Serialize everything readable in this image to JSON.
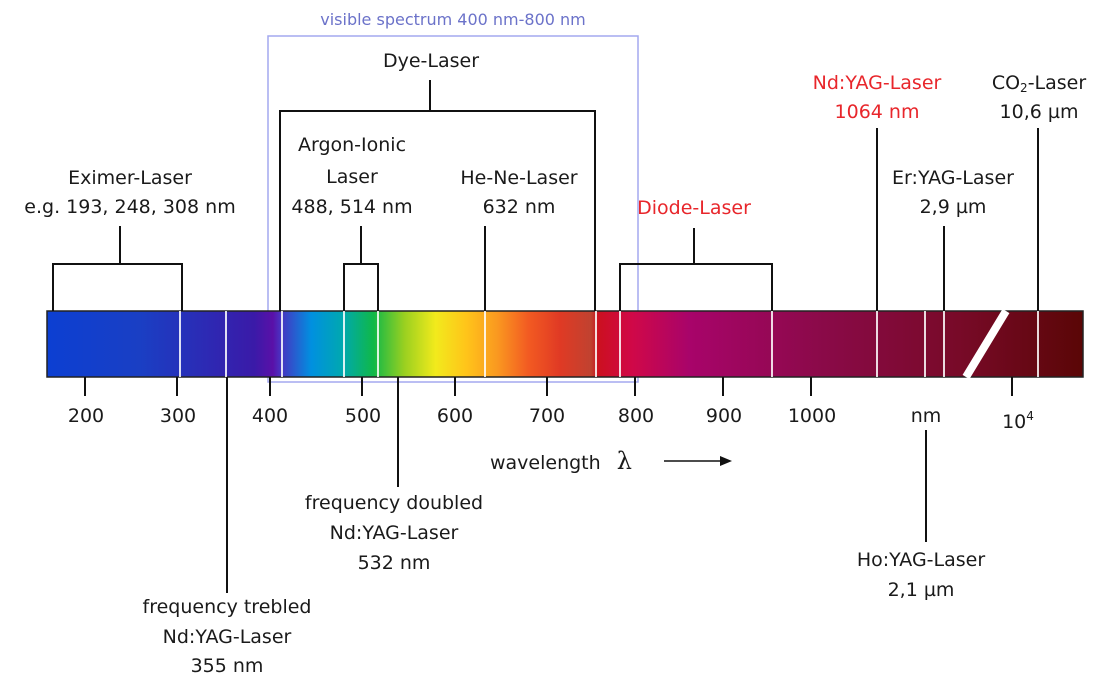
{
  "visible_label": "visible spectrum 400 nm-800 nm",
  "lasers": {
    "dye": "Dye-Laser",
    "argon_1": "Argon-Ionic",
    "argon_2": "Laser",
    "argon_3": "488, 514 nm",
    "hene_1": "He-Ne-Laser",
    "hene_2": "632 nm",
    "eximer_1": "Eximer-Laser",
    "eximer_2": "e.g. 193, 248, 308 nm",
    "diode": "Diode-Laser",
    "ndyag_1": "Nd:YAG-Laser",
    "ndyag_2": "1064 nm",
    "co2_1": "CO",
    "co2_sub": "2",
    "co2_2": "-Laser",
    "co2_3": "10,6 µm",
    "eryag_1": "Er:YAG-Laser",
    "eryag_2": "2,9 µm",
    "doubled_1": "frequency doubled",
    "doubled_2": "Nd:YAG-Laser",
    "doubled_3": "532 nm",
    "trebled_1": "frequency trebled",
    "trebled_2": "Nd:YAG-Laser",
    "trebled_3": "355 nm",
    "hoyag_1": "Ho:YAG-Laser",
    "hoyag_2": "2,1 µm"
  },
  "axis": {
    "ticks": [
      "200",
      "300",
      "400",
      "500",
      "600",
      "700",
      "800",
      "900",
      "1000"
    ],
    "nm_label": "nm",
    "pow_base": "10",
    "pow_exp": "4",
    "wavelength_label": "wavelength",
    "lambda": "λ"
  },
  "colors": {
    "visible_box": "#a4a9ef",
    "highlight": "#e8262b"
  }
}
